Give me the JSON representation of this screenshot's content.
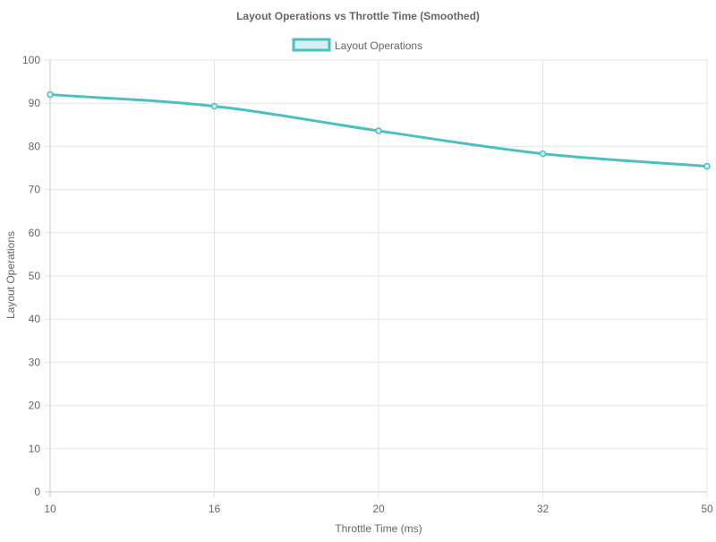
{
  "chart_data": {
    "type": "line",
    "title": "Layout Operations vs Throttle Time (Smoothed)",
    "xlabel": "Throttle Time (ms)",
    "ylabel": "Layout Operations",
    "categories": [
      "10",
      "16",
      "20",
      "32",
      "50"
    ],
    "series": [
      {
        "name": "Layout Operations",
        "values": [
          92,
          89.3,
          83.6,
          78.3,
          75.4
        ],
        "color": "#4bc0c0",
        "fill": "#d4f1f1"
      }
    ],
    "ylim": [
      0,
      100
    ],
    "yticks": [
      0,
      10,
      20,
      30,
      40,
      50,
      60,
      70,
      80,
      90,
      100
    ],
    "grid": true,
    "legend_position": "top",
    "smoothed": true,
    "colors": {
      "grid": "#e5e5e5",
      "axis": "#c8c8c8",
      "text": "#666666",
      "title": "#666666"
    }
  }
}
